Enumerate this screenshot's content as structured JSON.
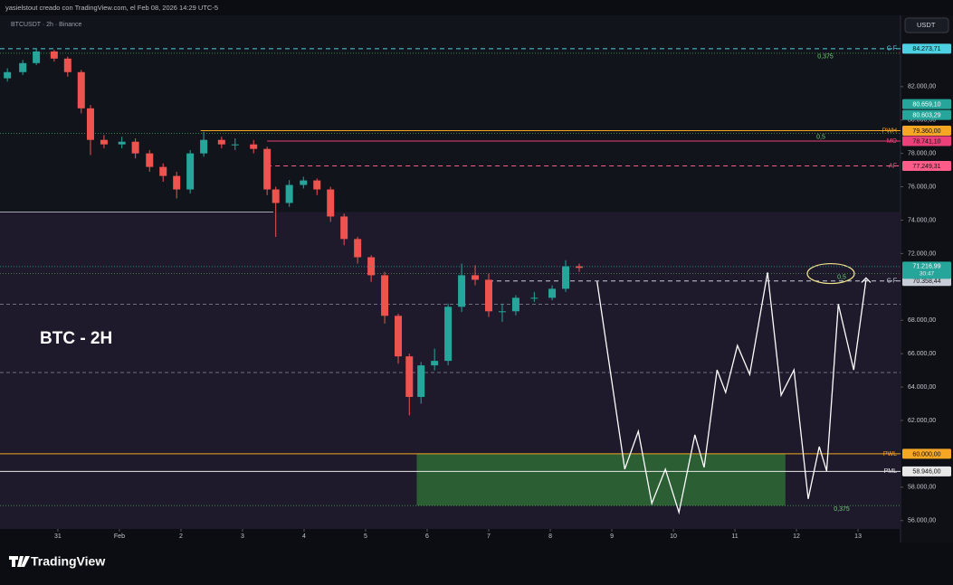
{
  "header": {
    "credit": "yasielstout creado con TradingView.com, el Feb 08, 2026 14:29 UTC-5",
    "symbol": "BTCUSDT · 2h · Binance",
    "currency": "USDT"
  },
  "chart_data": {
    "type": "candlestick",
    "annotation": "BTC - 2H",
    "up_color": "#26a69a",
    "down_color": "#ef5350",
    "x": [
      -0.82,
      -0.57,
      -0.35,
      -0.06,
      0.16,
      0.38,
      0.53,
      0.75,
      1.04,
      1.26,
      1.49,
      1.71,
      1.93,
      2.15,
      2.37,
      2.66,
      2.88,
      3.18,
      3.4,
      3.54,
      3.76,
      3.99,
      4.21,
      4.43,
      4.65,
      4.87,
      5.09,
      5.31,
      5.53,
      5.71,
      5.9,
      6.12,
      6.34,
      6.56,
      6.78,
      7.0,
      7.22,
      7.44,
      7.74,
      8.03,
      8.25,
      8.47
    ],
    "open": [
      82500,
      82870,
      83410,
      84110,
      83680,
      82870,
      80700,
      78810,
      78540,
      78700,
      78000,
      77190,
      76650,
      75840,
      78000,
      78810,
      78540,
      78540,
      78270,
      75840,
      75030,
      76110,
      76380,
      75840,
      74220,
      72870,
      71780,
      70700,
      68270,
      65840,
      63410,
      65300,
      65570,
      68810,
      70700,
      70430,
      68540,
      68540,
      69350,
      69350,
      69890,
      71240
    ],
    "high": [
      83100,
      83600,
      84300,
      84200,
      83800,
      83000,
      80900,
      79100,
      79000,
      78900,
      78200,
      77400,
      76900,
      78200,
      79300,
      79000,
      78900,
      78800,
      78400,
      76000,
      76400,
      76600,
      76500,
      76000,
      74400,
      73000,
      71900,
      70900,
      68400,
      66000,
      65500,
      66300,
      69000,
      71400,
      71300,
      70800,
      69000,
      69500,
      69700,
      70100,
      71600,
      71400
    ],
    "low": [
      82300,
      82700,
      83300,
      83500,
      82600,
      80400,
      77900,
      78300,
      78300,
      77700,
      76900,
      76300,
      75300,
      75600,
      77800,
      78300,
      78200,
      78000,
      75500,
      73000,
      74800,
      75900,
      75500,
      73900,
      72500,
      71400,
      70300,
      67800,
      65400,
      62300,
      63000,
      65000,
      65300,
      68500,
      70100,
      68200,
      67900,
      68300,
      69100,
      69200,
      69700,
      70900
    ],
    "close": [
      82870,
      83410,
      84110,
      83680,
      82870,
      80700,
      78810,
      78540,
      78700,
      78000,
      77190,
      76650,
      75840,
      78000,
      78810,
      78540,
      78540,
      78270,
      75840,
      75030,
      76110,
      76380,
      75840,
      74220,
      72870,
      71780,
      70700,
      68270,
      65840,
      63410,
      65300,
      65570,
      68810,
      70700,
      70430,
      68540,
      68540,
      69350,
      69350,
      69890,
      71240,
      71140
    ],
    "xlim": [
      -0.94,
      13.69
    ],
    "xticks": [
      {
        "value": 0,
        "label": "31"
      },
      {
        "value": 1,
        "label": "Feb"
      },
      2,
      3,
      4,
      5,
      6,
      7,
      8,
      9,
      10,
      11,
      12,
      13
    ],
    "ylim": [
      55500,
      86270
    ],
    "yticks": [
      {
        "value": 56000,
        "label": "56.000,00"
      },
      {
        "value": 58000,
        "label": "58.000,00"
      },
      {
        "value": 62000,
        "label": "62.000,00"
      },
      {
        "value": 64000,
        "label": "64.000,00"
      },
      {
        "value": 66000,
        "label": "66.000,00"
      },
      {
        "value": 68000,
        "label": "68.000,00"
      },
      {
        "value": 72000,
        "label": "72.000,00"
      },
      {
        "value": 74000,
        "label": "74.000,00"
      },
      {
        "value": 76000,
        "label": "76.000,00"
      },
      {
        "value": 78000,
        "label": "78.000,00"
      },
      {
        "value": 80000,
        "label": "80.000,00"
      },
      {
        "value": 82000,
        "label": "82.000,00"
      }
    ],
    "levels": [
      {
        "label": "C F",
        "value": 84273.71,
        "value_label": "84.273,71",
        "color": "#4dd0e1",
        "dash": true
      },
      {
        "label": "PWH",
        "value": 79360,
        "value_label": "79.360,00",
        "color": "#f5a623",
        "dash": false,
        "from": 2.32
      },
      {
        "label": "MO",
        "value": 78741.1,
        "value_label": "78.741,10",
        "color": "#ec407a",
        "dash": false,
        "from": 3.4
      },
      {
        "label": "AF",
        "value": 77249.31,
        "value_label": "77.249,31",
        "color": "#ff5c8a",
        "dash": true,
        "from": 3.4
      },
      {
        "label": "C F",
        "value": 70358.44,
        "value_label": "70.358,44",
        "color": "#c9cdd8",
        "dash": true,
        "from": 7.0
      },
      {
        "label": "PWL",
        "value": 60000,
        "value_label": "60.000,00",
        "color": "#f5a623",
        "dash": false
      },
      {
        "label": "PML",
        "value": 58946,
        "value_label": "58.946,00",
        "color": "#e8e8e8",
        "dash": false
      }
    ],
    "guides": [
      {
        "value": 68970,
        "color": "#8a8a9a"
      },
      {
        "value": 64870,
        "color": "#8a8a9a"
      },
      {
        "value": 74490,
        "color": "#b8b8c8",
        "to": 3.5
      }
    ],
    "fib_labels": [
      {
        "label": "0,375",
        "value": 84000
      },
      {
        "label": "0,5",
        "value": 79200
      },
      {
        "label": "0,5",
        "value": 70800
      },
      {
        "label": "0,375",
        "value": 56900
      }
    ],
    "extra_labels": [
      {
        "value": 80659.1,
        "value_label": "80.659,10",
        "color": "#26a69a"
      },
      {
        "value": 80603.29,
        "value_label": "80.603,29",
        "color": "#26a69a"
      }
    ],
    "last_price": {
      "value": 71216.99,
      "value_label": "71.216,99",
      "countdown": "30:47",
      "color": "#26a69a"
    },
    "zone": {
      "x": [
        5.83,
        11.82
      ],
      "y": [
        56900,
        60000
      ],
      "color": "#2e6b35"
    },
    "projection": {
      "color": "#ffffff",
      "x": [
        8.76,
        9.21,
        9.43,
        9.65,
        9.87,
        10.09,
        10.35,
        10.5,
        10.71,
        10.85,
        11.04,
        11.24,
        11.53,
        11.75,
        11.96,
        12.19,
        12.37,
        12.49,
        12.68,
        12.93,
        13.13
      ],
      "y": [
        70330,
        59080,
        61350,
        57030,
        59080,
        56490,
        61140,
        59190,
        65030,
        63680,
        66490,
        64760,
        70870,
        63510,
        65030,
        57300,
        60430,
        58970,
        68970,
        65030,
        70430
      ]
    }
  },
  "footer": {
    "brand": "TradingView"
  }
}
